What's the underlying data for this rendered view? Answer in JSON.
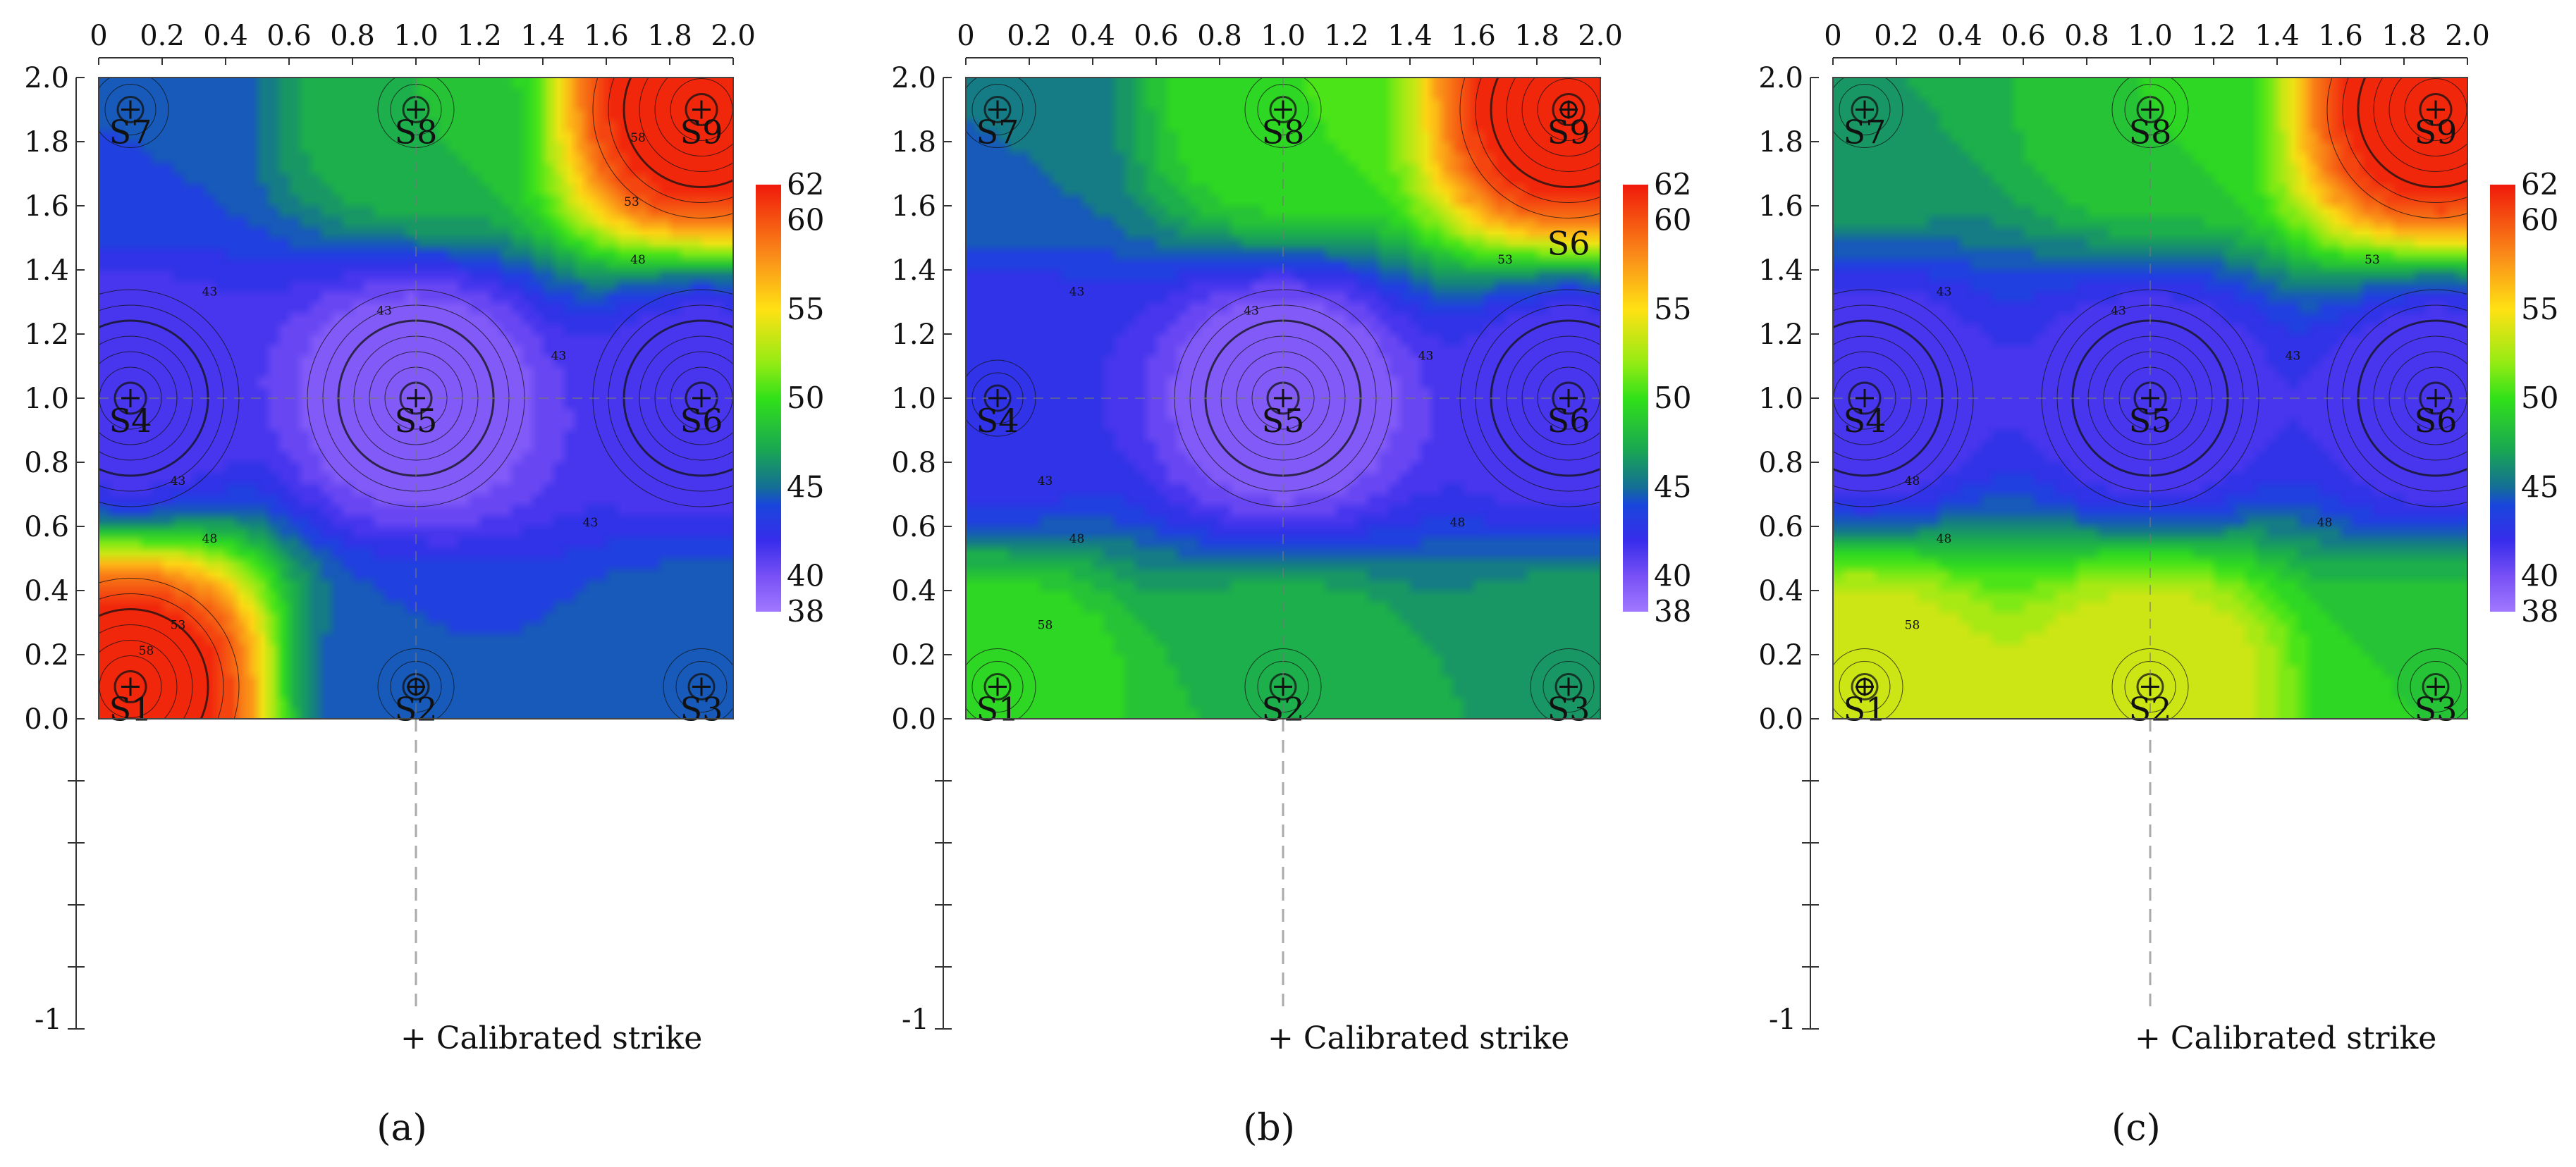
{
  "chart_data": [
    {
      "caption": "(a)",
      "type": "heatmap",
      "subtype": "contour",
      "xlim": [
        0,
        2.0
      ],
      "ylim": [
        0,
        2.0
      ],
      "x_tick_labels": [
        "0",
        "0.2",
        "0.4",
        "0.6",
        "0.8",
        "1.0",
        "1.2",
        "1.4",
        "1.6",
        "1.8",
        "2.0"
      ],
      "y_tick_labels": [
        "0.0",
        "0.2",
        "0.4",
        "0.6",
        "0.8",
        "1.0",
        "1.2",
        "1.4",
        "1.6",
        "1.8",
        "2.0"
      ],
      "y_extended_min_label": "-1",
      "colorbar": {
        "min": 38,
        "max": 62,
        "tick_labels": [
          "38",
          "40",
          "45",
          "50",
          "55",
          "60",
          "62"
        ]
      },
      "sensors": [
        {
          "name": "S1",
          "x": 0.1,
          "y": 0.1,
          "value": 62
        },
        {
          "name": "S2",
          "x": 1.0,
          "y": 0.1,
          "value": 44
        },
        {
          "name": "S3",
          "x": 1.9,
          "y": 0.1,
          "value": 45
        },
        {
          "name": "S4",
          "x": 0.1,
          "y": 1.0,
          "value": 41
        },
        {
          "name": "S5",
          "x": 1.0,
          "y": 1.0,
          "value": 39
        },
        {
          "name": "S6",
          "x": 1.9,
          "y": 1.0,
          "value": 41
        },
        {
          "name": "S7",
          "x": 0.1,
          "y": 1.9,
          "value": 44
        },
        {
          "name": "S8",
          "x": 1.0,
          "y": 1.9,
          "value": 48
        },
        {
          "name": "S9",
          "x": 1.9,
          "y": 1.9,
          "value": 62
        }
      ],
      "calibrated_strike": {
        "x": 1.0,
        "y": 0.1
      },
      "contour_labels": [
        "43",
        "43",
        "43",
        "43",
        "43",
        "48",
        "48",
        "53",
        "58",
        "53",
        "58"
      ],
      "legend": "+ Calibrated strike"
    },
    {
      "caption": "(b)",
      "type": "heatmap",
      "subtype": "contour",
      "xlim": [
        0,
        2.0
      ],
      "ylim": [
        0,
        2.0
      ],
      "x_tick_labels": [
        "0",
        "0.2",
        "0.4",
        "0.6",
        "0.8",
        "1.0",
        "1.2",
        "1.4",
        "1.6",
        "1.8",
        "2.0"
      ],
      "y_tick_labels": [
        "0.0",
        "0.2",
        "0.4",
        "0.6",
        "0.8",
        "1.0",
        "1.2",
        "1.4",
        "1.6",
        "1.8",
        "2.0"
      ],
      "y_extended_min_label": "-1",
      "colorbar": {
        "min": 38,
        "max": 62,
        "tick_labels": [
          "38",
          "40",
          "45",
          "50",
          "55",
          "60",
          "62"
        ]
      },
      "sensors": [
        {
          "name": "S1",
          "x": 0.1,
          "y": 0.1,
          "value": 50
        },
        {
          "name": "S2",
          "x": 1.0,
          "y": 0.1,
          "value": 48
        },
        {
          "name": "S3",
          "x": 1.9,
          "y": 0.1,
          "value": 47
        },
        {
          "name": "S4",
          "x": 0.1,
          "y": 1.0,
          "value": 42
        },
        {
          "name": "S5",
          "x": 1.0,
          "y": 1.0,
          "value": 39
        },
        {
          "name": "S6",
          "x": 1.9,
          "y": 1.0,
          "value": 41
        },
        {
          "name": "S7",
          "x": 0.1,
          "y": 1.9,
          "value": 45
        },
        {
          "name": "S8",
          "x": 1.0,
          "y": 1.9,
          "value": 50
        },
        {
          "name": "S9",
          "x": 1.9,
          "y": 1.9,
          "value": 62
        }
      ],
      "extra_labels": [
        {
          "name": "S6",
          "x": 1.9,
          "y": 1.5
        }
      ],
      "calibrated_strike": {
        "x": 1.9,
        "y": 1.9
      },
      "contour_labels": [
        "43",
        "43",
        "43",
        "43",
        "48",
        "48",
        "53",
        "58"
      ],
      "legend": "+ Calibrated strike"
    },
    {
      "caption": "(c)",
      "type": "heatmap",
      "subtype": "contour",
      "xlim": [
        0,
        2.0
      ],
      "ylim": [
        0,
        2.0
      ],
      "x_tick_labels": [
        "0",
        "0.2",
        "0.4",
        "0.6",
        "0.8",
        "1.0",
        "1.2",
        "1.4",
        "1.6",
        "1.8",
        "2.0"
      ],
      "y_tick_labels": [
        "0.0",
        "0.2",
        "0.4",
        "0.6",
        "0.8",
        "1.0",
        "1.2",
        "1.4",
        "1.6",
        "1.8",
        "2.0"
      ],
      "y_extended_min_label": "-1",
      "colorbar": {
        "min": 38,
        "max": 62,
        "tick_labels": [
          "38",
          "40",
          "45",
          "50",
          "55",
          "60",
          "62"
        ]
      },
      "sensors": [
        {
          "name": "S1",
          "x": 0.1,
          "y": 0.1,
          "value": 54
        },
        {
          "name": "S2",
          "x": 1.0,
          "y": 0.1,
          "value": 54
        },
        {
          "name": "S3",
          "x": 1.9,
          "y": 0.1,
          "value": 49
        },
        {
          "name": "S4",
          "x": 0.1,
          "y": 1.0,
          "value": 41
        },
        {
          "name": "S5",
          "x": 1.0,
          "y": 1.0,
          "value": 41
        },
        {
          "name": "S6",
          "x": 1.9,
          "y": 1.0,
          "value": 41
        },
        {
          "name": "S7",
          "x": 0.1,
          "y": 1.9,
          "value": 47
        },
        {
          "name": "S8",
          "x": 1.0,
          "y": 1.9,
          "value": 49
        },
        {
          "name": "S9",
          "x": 1.9,
          "y": 1.9,
          "value": 62
        }
      ],
      "calibrated_strike": {
        "x": 0.1,
        "y": 0.1
      },
      "contour_labels": [
        "43",
        "43",
        "43",
        "48",
        "48",
        "48",
        "53",
        "58"
      ],
      "legend": "+ Calibrated strike"
    }
  ]
}
